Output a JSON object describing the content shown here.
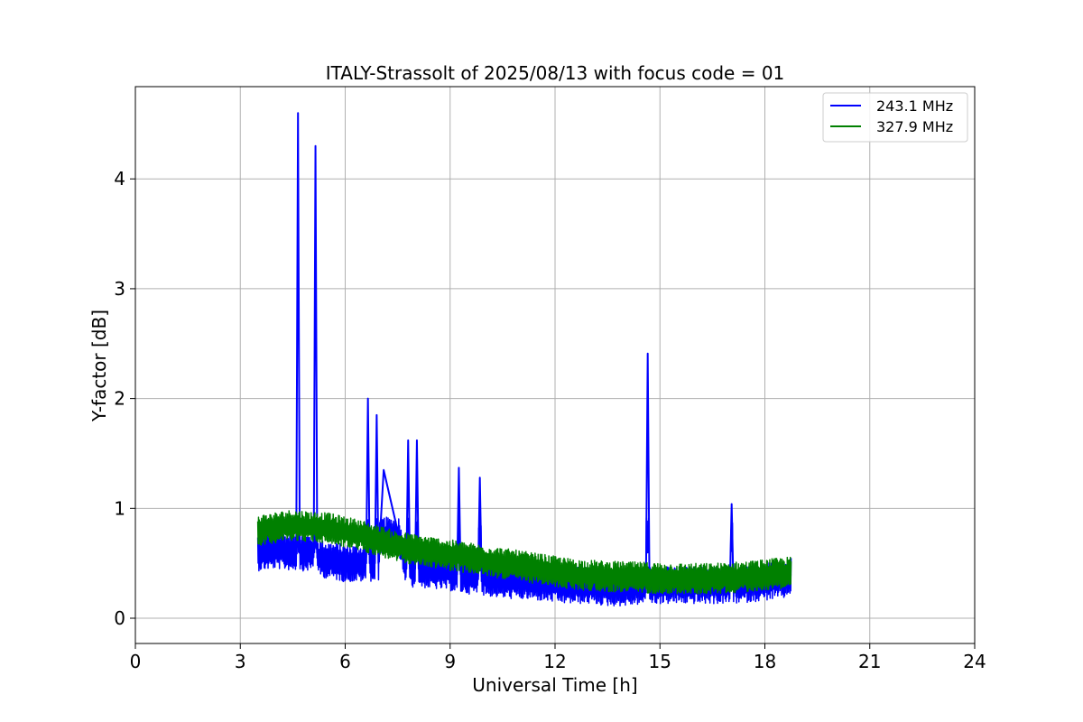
{
  "chart_data": {
    "type": "line",
    "title": "ITALY-Strassolt of 2025/08/13 with focus code = 01",
    "xlabel": "Universal Time [h]",
    "ylabel": "Y-factor [dB]",
    "xlim": [
      0,
      24
    ],
    "ylim": [
      -0.23,
      4.84
    ],
    "xticks": [
      0,
      3,
      6,
      9,
      12,
      15,
      18,
      21,
      24
    ],
    "yticks": [
      0,
      1,
      2,
      3,
      4
    ],
    "grid": true,
    "legend_position": "top-right",
    "series": [
      {
        "name": "243.1 MHz",
        "color": "#0000ff",
        "x": [
          3.5,
          4.0,
          4.6,
          4.65,
          4.7,
          5.1,
          5.15,
          5.2,
          6.0,
          6.6,
          6.65,
          6.7,
          6.85,
          6.9,
          6.95,
          7.1,
          7.75,
          7.8,
          7.85,
          8.0,
          8.05,
          8.1,
          9.0,
          9.2,
          9.25,
          9.3,
          9.8,
          9.85,
          9.9,
          10.5,
          11.5,
          12.3,
          13.0,
          13.5,
          14.0,
          14.6,
          14.65,
          14.7,
          15.5,
          16.5,
          17.0,
          17.05,
          17.1,
          18.0,
          18.6,
          18.75
        ],
        "y": [
          0.6,
          0.62,
          0.6,
          4.6,
          0.6,
          0.6,
          4.3,
          0.55,
          0.5,
          0.5,
          2.0,
          0.5,
          0.5,
          1.85,
          0.5,
          1.35,
          0.45,
          1.62,
          0.45,
          0.45,
          1.62,
          0.45,
          0.42,
          0.4,
          1.37,
          0.4,
          0.38,
          1.28,
          0.38,
          0.35,
          0.33,
          0.3,
          0.3,
          0.28,
          0.28,
          0.3,
          2.41,
          0.3,
          0.3,
          0.3,
          0.3,
          1.04,
          0.3,
          0.33,
          0.35,
          0.4
        ]
      },
      {
        "name": "327.9 MHz",
        "color": "#008000",
        "x": [
          3.5,
          4.5,
          5.5,
          6.5,
          7.5,
          8.5,
          9.5,
          10.5,
          11.5,
          12.5,
          13.5,
          14.5,
          15.5,
          16.5,
          17.5,
          18.75
        ],
        "y": [
          0.8,
          0.85,
          0.82,
          0.75,
          0.65,
          0.6,
          0.55,
          0.5,
          0.45,
          0.4,
          0.38,
          0.37,
          0.36,
          0.36,
          0.38,
          0.42
        ]
      }
    ]
  }
}
